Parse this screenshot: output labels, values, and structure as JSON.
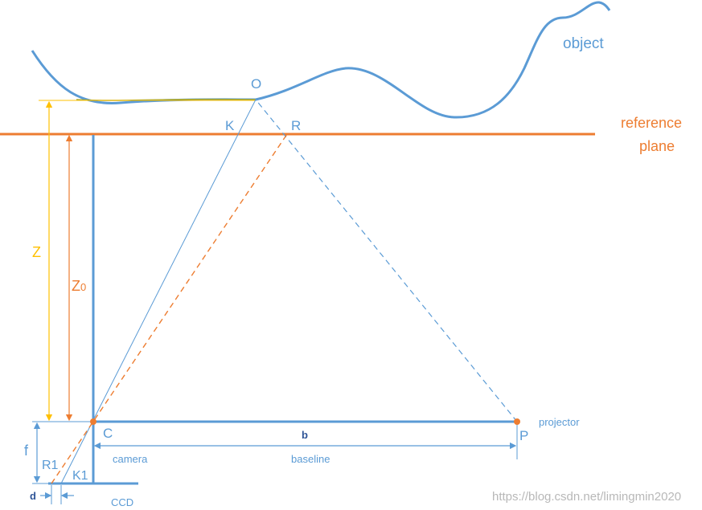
{
  "colors": {
    "blue": "#5b9bd5",
    "orange": "#ed7d31",
    "yellow": "#ffc000",
    "olive": "#9aa33a",
    "watermark": "#b8b8b8",
    "dark": "#2f5597"
  },
  "labels": {
    "object": "object",
    "point_o": "O",
    "point_k": "K",
    "point_r": "R",
    "reference_line1": "reference",
    "reference_line2": "plane",
    "z": "Z",
    "z0_main": "Z",
    "z0_sub": "0",
    "f": "f",
    "r1": "R1",
    "k1": "K1",
    "c": "C",
    "p": "P",
    "b": "b",
    "camera": "camera",
    "baseline": "baseline",
    "projector": "projector",
    "d": "d",
    "ccd": "CCD"
  },
  "watermark": "https://blog.csdn.net/limingmin2020"
}
